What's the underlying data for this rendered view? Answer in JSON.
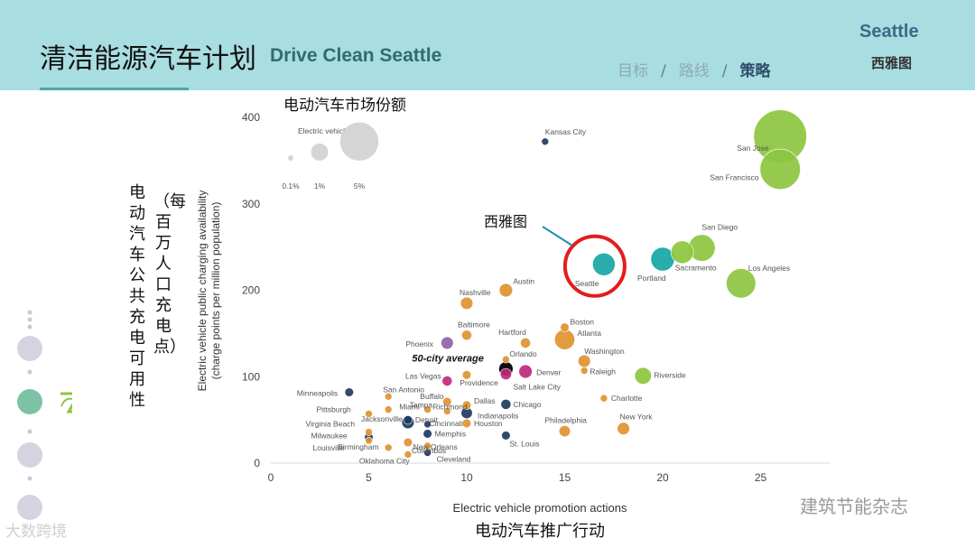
{
  "header": {
    "title_cn": "清洁能源汽车计划",
    "title_en": "Drive Clean Seattle",
    "nav": [
      "目标",
      "路线",
      "策略"
    ],
    "nav_separator": "/",
    "active_nav": "策略",
    "city_en": "Seattle",
    "city_cn": "西雅图"
  },
  "watermarks": {
    "left": "大数跨境",
    "right": "建筑节能杂志"
  },
  "colors": {
    "header_bg": "#a8dde1",
    "orange": "#e0922f",
    "navy": "#1e3a5f",
    "purple": "#8e64a8",
    "magenta": "#c0297c",
    "black": "#111111",
    "green": "#8cc63f",
    "teal": "#16a5a5",
    "gray_legend": "#d5d5d5",
    "highlight_red": "#e21d1d"
  },
  "chart_data": {
    "type": "scatter",
    "title": "电动汽车市场份额",
    "xlabel": "Electric vehicle promotion actions",
    "xlabel_cn": "电动汽车推广行动",
    "ylabel": "Electric vehicle public charging availability",
    "ylabel_sub": "(charge points per million population)",
    "ylabel_cn": "电动汽车公共充电可用性",
    "ylabel_cn_sub": "（每百万人口充电点）",
    "xlim": [
      0,
      28
    ],
    "ylim": [
      0,
      410
    ],
    "xticks": [
      0,
      5,
      10,
      15,
      20,
      25
    ],
    "yticks": [
      0,
      100,
      200,
      300,
      400
    ],
    "size_legend": {
      "title": "Electric vehicle share",
      "entries": [
        {
          "label": "0.1%",
          "share": 0.1
        },
        {
          "label": "1%",
          "share": 1
        },
        {
          "label": "5%",
          "share": 5
        }
      ]
    },
    "annotation": {
      "label": "西雅图",
      "target": "Seattle"
    },
    "points": [
      {
        "city": "Kansas City",
        "x": 14,
        "y": 372,
        "share": 0.1,
        "color": "navy"
      },
      {
        "city": "San Jose",
        "x": 26,
        "y": 378,
        "share": 5.5,
        "color": "green"
      },
      {
        "city": "San Francisco",
        "x": 26,
        "y": 340,
        "share": 3.2,
        "color": "green"
      },
      {
        "city": "San Diego",
        "x": 22,
        "y": 249,
        "share": 1.4,
        "color": "green"
      },
      {
        "city": "Sacramento",
        "x": 21,
        "y": 244,
        "share": 1.0,
        "color": "green"
      },
      {
        "city": "Portland",
        "x": 20,
        "y": 236,
        "share": 1.1,
        "color": "teal"
      },
      {
        "city": "Seattle",
        "x": 17,
        "y": 230,
        "share": 1.0,
        "color": "teal"
      },
      {
        "city": "Los Angeles",
        "x": 24,
        "y": 208,
        "share": 1.7,
        "color": "green"
      },
      {
        "city": "Austin",
        "x": 12,
        "y": 200,
        "share": 0.35,
        "color": "orange"
      },
      {
        "city": "Nashville",
        "x": 10,
        "y": 185,
        "share": 0.3,
        "color": "orange"
      },
      {
        "city": "Baltimore",
        "x": 10,
        "y": 148,
        "share": 0.2,
        "color": "orange"
      },
      {
        "city": "Phoenix",
        "x": 9,
        "y": 139,
        "share": 0.3,
        "color": "purple"
      },
      {
        "city": "Hartford",
        "x": 13,
        "y": 139,
        "share": 0.2,
        "color": "orange"
      },
      {
        "city": "Boston",
        "x": 15,
        "y": 157,
        "share": 0.15,
        "color": "orange"
      },
      {
        "city": "Atlanta",
        "x": 15,
        "y": 143,
        "share": 0.8,
        "color": "orange"
      },
      {
        "city": "Orlando",
        "x": 12,
        "y": 120,
        "share": 0.1,
        "color": "orange"
      },
      {
        "city": "Washington",
        "x": 16,
        "y": 118,
        "share": 0.3,
        "color": "orange"
      },
      {
        "city": "50-city average",
        "x": 12,
        "y": 109,
        "share": 0.4,
        "color": "black"
      },
      {
        "city": "Raleigh",
        "x": 16,
        "y": 107,
        "share": 0.1,
        "color": "orange"
      },
      {
        "city": "Riverside",
        "x": 19,
        "y": 101,
        "share": 0.55,
        "color": "green"
      },
      {
        "city": "Las Vegas",
        "x": 10,
        "y": 102,
        "share": 0.15,
        "color": "orange"
      },
      {
        "city": "Denver",
        "x": 13,
        "y": 106,
        "share": 0.35,
        "color": "magenta"
      },
      {
        "city": "Providence",
        "x": 9,
        "y": 95,
        "share": 0.2,
        "color": "magenta"
      },
      {
        "city": "Salt Lake City",
        "x": 12,
        "y": 103,
        "share": 0.25,
        "color": "magenta"
      },
      {
        "city": "Minneapolis",
        "x": 4,
        "y": 82,
        "share": 0.15,
        "color": "navy"
      },
      {
        "city": "San Antonio",
        "x": 6,
        "y": 77,
        "share": 0.1,
        "color": "orange"
      },
      {
        "city": "Buffalo",
        "x": 9,
        "y": 71,
        "share": 0.15,
        "color": "orange"
      },
      {
        "city": "Dallas",
        "x": 10,
        "y": 67,
        "share": 0.15,
        "color": "orange"
      },
      {
        "city": "Chicago",
        "x": 12,
        "y": 68,
        "share": 0.2,
        "color": "navy"
      },
      {
        "city": "Charlotte",
        "x": 17,
        "y": 75,
        "share": 0.1,
        "color": "orange"
      },
      {
        "city": "Miami",
        "x": 6,
        "y": 62,
        "share": 0.1,
        "color": "orange"
      },
      {
        "city": "Tampa",
        "x": 8,
        "y": 62,
        "share": 0.1,
        "color": "orange"
      },
      {
        "city": "Richmond",
        "x": 9,
        "y": 60,
        "share": 0.1,
        "color": "orange"
      },
      {
        "city": "Pittsburgh",
        "x": 5,
        "y": 57,
        "share": 0.1,
        "color": "orange"
      },
      {
        "city": "Indianapolis",
        "x": 10,
        "y": 58,
        "share": 0.25,
        "color": "navy"
      },
      {
        "city": "Jacksonville",
        "x": 7,
        "y": 50,
        "share": 0.15,
        "color": "navy"
      },
      {
        "city": "Detroit",
        "x": 7,
        "y": 47,
        "share": 0.3,
        "color": "navy"
      },
      {
        "city": "Houston",
        "x": 10,
        "y": 46,
        "share": 0.15,
        "color": "orange"
      },
      {
        "city": "Cincinnati",
        "x": 8,
        "y": 45,
        "share": 0.1,
        "color": "navy"
      },
      {
        "city": "Philadelphia",
        "x": 15,
        "y": 37,
        "share": 0.25,
        "color": "orange"
      },
      {
        "city": "New York",
        "x": 18,
        "y": 40,
        "share": 0.3,
        "color": "orange"
      },
      {
        "city": "Virginia Beach",
        "x": 5,
        "y": 36,
        "share": 0.1,
        "color": "orange"
      },
      {
        "city": "Memphis",
        "x": 8,
        "y": 34,
        "share": 0.15,
        "color": "navy"
      },
      {
        "city": "Milwaukee",
        "x": 5,
        "y": 30,
        "share": 0.15,
        "color": "navy"
      },
      {
        "city": "St. Louis",
        "x": 12,
        "y": 32,
        "share": 0.15,
        "color": "navy"
      },
      {
        "city": "Louisville",
        "x": 5,
        "y": 26,
        "share": 0.1,
        "color": "orange"
      },
      {
        "city": "Columbus",
        "x": 7,
        "y": 24,
        "share": 0.15,
        "color": "orange"
      },
      {
        "city": "Birmingham",
        "x": 6,
        "y": 18,
        "share": 0.1,
        "color": "orange"
      },
      {
        "city": "New Orleans",
        "x": 8,
        "y": 20,
        "share": 0.1,
        "color": "orange"
      },
      {
        "city": "Oklahoma City",
        "x": 7,
        "y": 10,
        "share": 0.1,
        "color": "orange"
      },
      {
        "city": "Cleveland",
        "x": 8,
        "y": 12,
        "share": 0.1,
        "color": "navy"
      }
    ]
  }
}
